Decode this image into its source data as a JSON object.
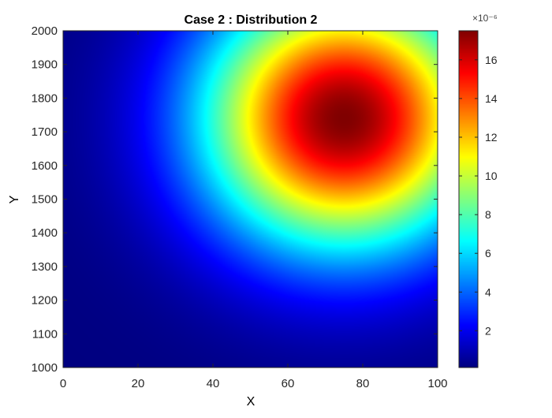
{
  "chart_data": {
    "type": "heatmap",
    "title": "Case 2 : Distribution 2",
    "xlabel": "X",
    "ylabel": "Y",
    "xlim": [
      0,
      100
    ],
    "ylim": [
      1000,
      2000
    ],
    "xticks": [
      0,
      20,
      40,
      60,
      80,
      100
    ],
    "yticks": [
      1000,
      1100,
      1200,
      1300,
      1400,
      1500,
      1600,
      1700,
      1800,
      1900,
      2000
    ],
    "colormap": "jet",
    "colorbar": {
      "ticks": [
        2,
        4,
        6,
        8,
        10,
        12,
        14,
        16
      ],
      "limits": [
        0.1,
        17.5
      ],
      "exponent_label": "×10⁻⁶"
    },
    "grid": false,
    "peak": {
      "x": 75,
      "y": 1740,
      "value": 17.5
    }
  }
}
